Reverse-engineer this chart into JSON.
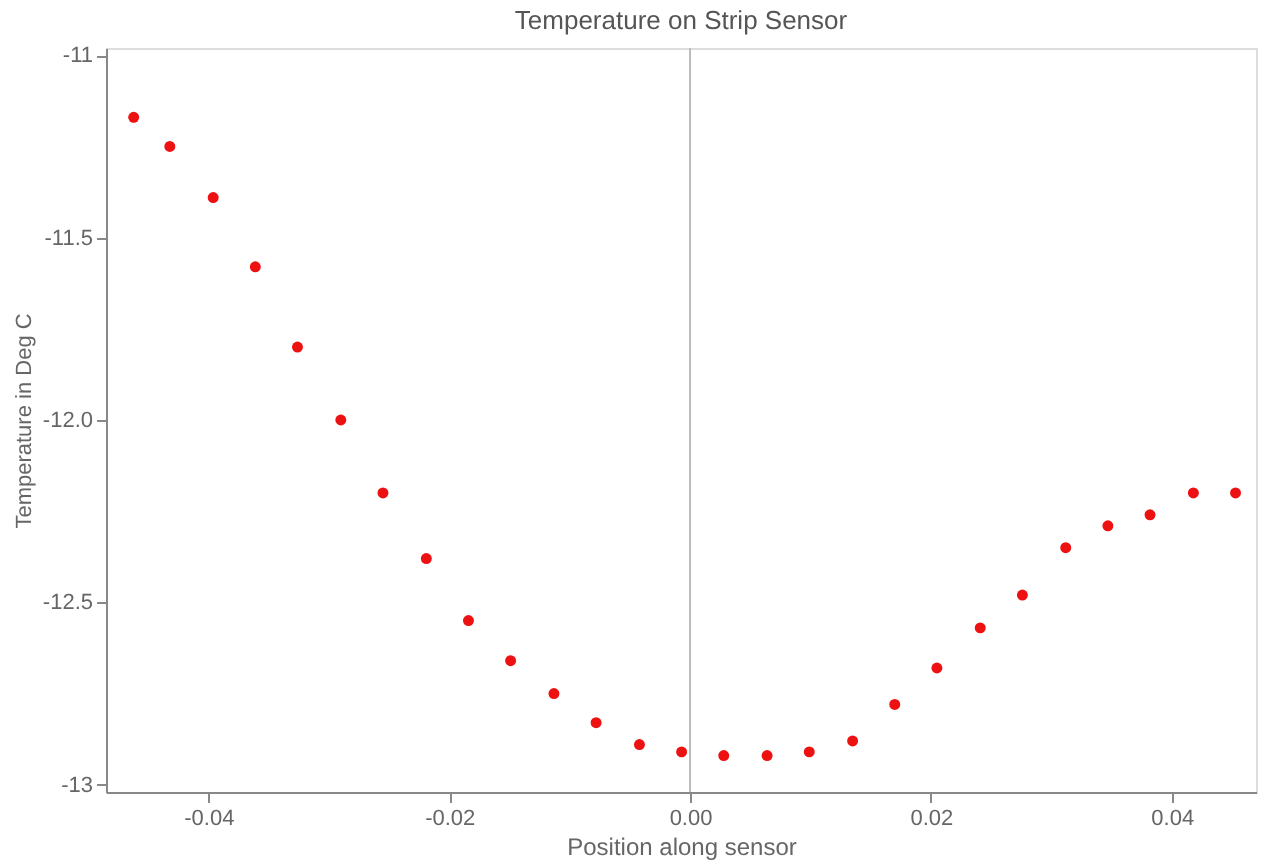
{
  "chart_data": {
    "type": "scatter",
    "title": "Temperature on Strip Sensor",
    "xlabel": "Position along sensor",
    "ylabel": "Temperature in Deg C",
    "x": [
      -0.0462,
      -0.0432,
      -0.0396,
      -0.0361,
      -0.0326,
      -0.029,
      -0.0255,
      -0.0219,
      -0.0184,
      -0.0149,
      -0.0113,
      -0.0078,
      -0.0042,
      -0.0007,
      0.0028,
      0.0064,
      0.0099,
      0.0135,
      0.017,
      0.0205,
      0.0241,
      0.0276,
      0.0312,
      0.0347,
      0.0382,
      0.0418,
      0.0453
    ],
    "series": [
      {
        "color": "#ee1111",
        "values": [
          -11.17,
          -11.25,
          -11.39,
          -11.58,
          -11.8,
          -12.0,
          -12.2,
          -12.38,
          -12.55,
          -12.66,
          -12.75,
          -12.83,
          -12.89,
          -12.91,
          -12.92,
          -12.92,
          -12.91,
          -12.88,
          -12.78,
          -12.68,
          -12.57,
          -12.48,
          -12.35,
          -12.29,
          -12.26,
          -12.2,
          -12.2
        ]
      }
    ],
    "xlim": [
      -0.0485,
      0.047
    ],
    "ylim": [
      -13.02,
      -10.98
    ],
    "xticks": [
      {
        "value": -0.04,
        "label": "-0.04"
      },
      {
        "value": -0.02,
        "label": "-0.02"
      },
      {
        "value": 0,
        "label": "0.00"
      },
      {
        "value": 0.02,
        "label": "0.02"
      },
      {
        "value": 0.04,
        "label": "0.04"
      }
    ],
    "yticks": [
      {
        "value": -11,
        "label": "-11"
      },
      -11.5,
      {
        "value": -12,
        "label": "-12.0"
      },
      -12.5,
      {
        "value": -13,
        "label": "-13"
      }
    ],
    "ref_lines": [
      {
        "axis": "x",
        "value": 0,
        "color": "#bbbbbb"
      }
    ],
    "marker": "circle",
    "grid": false
  }
}
